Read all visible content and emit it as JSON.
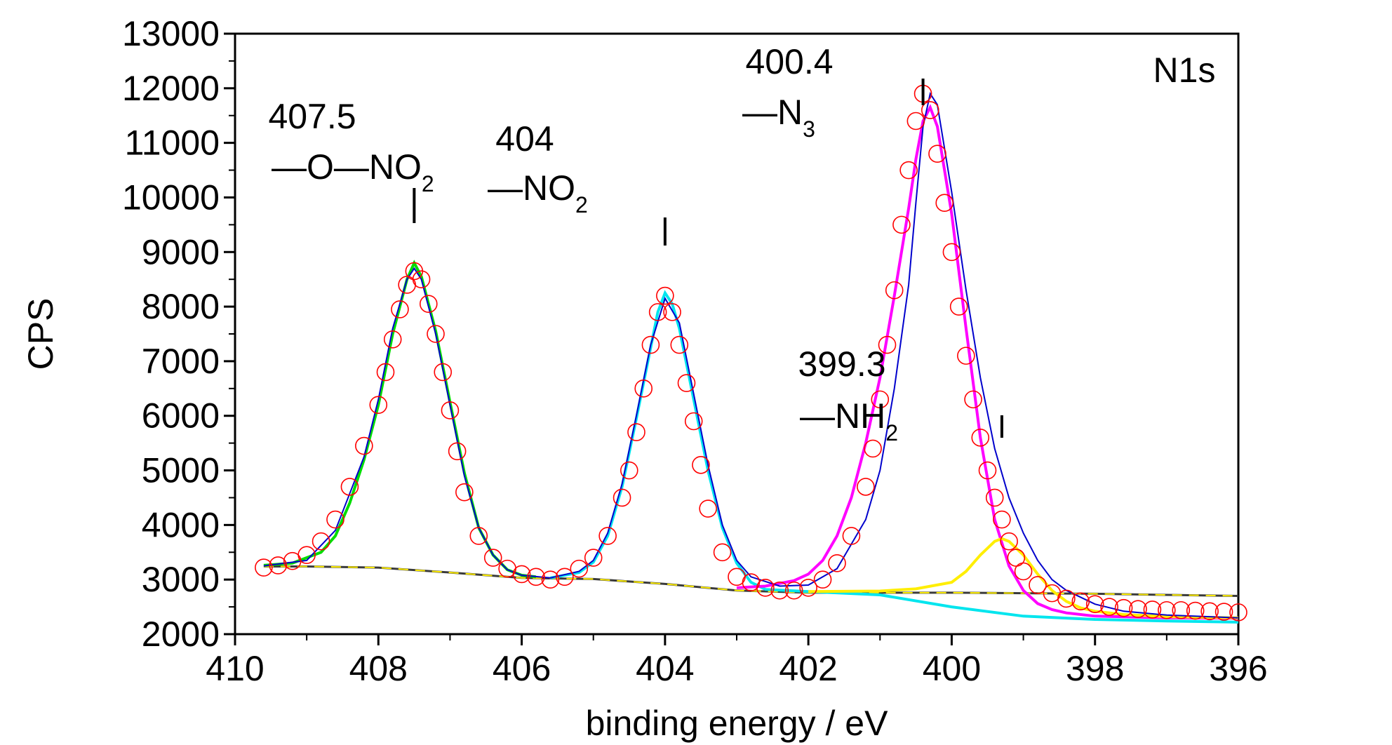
{
  "chart_data": {
    "type": "line",
    "panel_label": "N1s",
    "xlabel": "binding energy / eV",
    "ylabel": "CPS",
    "xlim": [
      410,
      396
    ],
    "ylim": [
      2000,
      13000
    ],
    "x_ticks": [
      "410",
      "408",
      "406",
      "404",
      "402",
      "400",
      "398",
      "396"
    ],
    "y_ticks": [
      "2000",
      "3000",
      "4000",
      "5000",
      "6000",
      "7000",
      "8000",
      "9000",
      "10000",
      "11000",
      "12000",
      "13000"
    ],
    "grid": false,
    "legend": "none",
    "colors": {
      "data": "#ff0000",
      "envelope": "#0000cc",
      "peak_407_5": "#00dd00",
      "peak_404": "#00e5ee",
      "peak_400_4": "#ff00ff",
      "peak_399_3": "#ffee00"
    },
    "series": [
      {
        "kind": "measured-points",
        "x": [
          409.6,
          409.4,
          409.2,
          409.0,
          408.8,
          408.6,
          408.4,
          408.2,
          408.0,
          407.9,
          407.8,
          407.7,
          407.6,
          407.5,
          407.4,
          407.3,
          407.2,
          407.1,
          407.0,
          406.9,
          406.8,
          406.6,
          406.4,
          406.2,
          406.0,
          405.8,
          405.6,
          405.4,
          405.2,
          405.0,
          404.8,
          404.6,
          404.5,
          404.4,
          404.3,
          404.2,
          404.1,
          404.0,
          403.9,
          403.8,
          403.7,
          403.6,
          403.5,
          403.4,
          403.2,
          403.0,
          402.8,
          402.6,
          402.4,
          402.2,
          402.0,
          401.8,
          401.6,
          401.4,
          401.2,
          401.1,
          401.0,
          400.9,
          400.8,
          400.7,
          400.6,
          400.5,
          400.4,
          400.3,
          400.2,
          400.1,
          400.0,
          399.9,
          399.8,
          399.7,
          399.6,
          399.5,
          399.4,
          399.3,
          399.2,
          399.1,
          399.0,
          398.8,
          398.6,
          398.4,
          398.2,
          398.0,
          397.8,
          397.6,
          397.4,
          397.2,
          397.0,
          396.8,
          396.6,
          396.4,
          396.2,
          396.0
        ],
        "y": [
          3220,
          3260,
          3340,
          3450,
          3700,
          4100,
          4700,
          5450,
          6200,
          6800,
          7400,
          7950,
          8400,
          8650,
          8500,
          8050,
          7500,
          6800,
          6100,
          5350,
          4600,
          3800,
          3400,
          3200,
          3100,
          3050,
          3000,
          3050,
          3200,
          3400,
          3800,
          4500,
          5000,
          5700,
          6500,
          7300,
          7900,
          8200,
          7900,
          7300,
          6600,
          5900,
          5100,
          4300,
          3500,
          3050,
          2950,
          2850,
          2800,
          2800,
          2850,
          3000,
          3300,
          3800,
          4700,
          5400,
          6300,
          7300,
          8300,
          9500,
          10500,
          11400,
          11900,
          11600,
          10800,
          9900,
          9000,
          8000,
          7100,
          6300,
          5600,
          5000,
          4500,
          4100,
          3700,
          3400,
          3150,
          2900,
          2750,
          2650,
          2600,
          2550,
          2500,
          2480,
          2460,
          2450,
          2440,
          2440,
          2430,
          2420,
          2410,
          2400
        ]
      },
      {
        "kind": "envelope",
        "x": [
          409.6,
          409.0,
          408.6,
          408.2,
          408.0,
          407.8,
          407.6,
          407.5,
          407.4,
          407.2,
          407.0,
          406.8,
          406.6,
          406.4,
          406.2,
          406.0,
          405.6,
          405.2,
          405.0,
          404.8,
          404.6,
          404.4,
          404.2,
          404.0,
          403.8,
          403.6,
          403.4,
          403.2,
          403.0,
          402.8,
          402.4,
          402.0,
          401.6,
          401.2,
          401.0,
          400.8,
          400.6,
          400.5,
          400.4,
          400.3,
          400.2,
          400.0,
          399.8,
          399.6,
          399.4,
          399.2,
          399.0,
          398.8,
          398.6,
          398.4,
          398.0,
          397.6,
          397.0,
          396.0
        ],
        "y": [
          3250,
          3350,
          3900,
          5250,
          6300,
          7600,
          8500,
          8700,
          8500,
          7500,
          6200,
          4900,
          3950,
          3450,
          3180,
          3080,
          3030,
          3150,
          3350,
          3850,
          4750,
          6000,
          7300,
          8150,
          7700,
          6400,
          5100,
          4000,
          3350,
          3050,
          2880,
          2900,
          3200,
          4100,
          5000,
          6500,
          8400,
          9900,
          11300,
          11900,
          11700,
          10100,
          8300,
          6700,
          5400,
          4500,
          3850,
          3350,
          3000,
          2800,
          2550,
          2420,
          2350,
          2300
        ]
      },
      {
        "kind": "component",
        "label": "407.5",
        "x": [
          409.6,
          409.2,
          408.8,
          408.6,
          408.4,
          408.2,
          408.0,
          407.8,
          407.6,
          407.5,
          407.4,
          407.2,
          407.0,
          406.8,
          406.6,
          406.4,
          406.2,
          406.0,
          405.8
        ],
        "y": [
          3260,
          3300,
          3500,
          3800,
          4400,
          5200,
          6200,
          7500,
          8500,
          8800,
          8550,
          7550,
          6250,
          4950,
          3950,
          3450,
          3180,
          3080,
          3050
        ]
      },
      {
        "kind": "component",
        "label": "404",
        "x": [
          405.6,
          405.2,
          405.0,
          404.8,
          404.6,
          404.4,
          404.2,
          404.1,
          404.0,
          403.9,
          403.8,
          403.6,
          403.4,
          403.2,
          403.0,
          402.8,
          402.6,
          402.0,
          401.0,
          400.0,
          399.0,
          398.0,
          397.0,
          396.0
        ],
        "y": [
          3030,
          3130,
          3320,
          3800,
          4700,
          5950,
          7250,
          7900,
          8250,
          8050,
          7600,
          6300,
          5000,
          3950,
          3300,
          2950,
          2820,
          2780,
          2720,
          2500,
          2330,
          2270,
          2240,
          2220
        ]
      },
      {
        "kind": "component",
        "label": "400.4",
        "x": [
          403.0,
          402.6,
          402.2,
          402.0,
          401.8,
          401.6,
          401.4,
          401.2,
          401.0,
          400.8,
          400.6,
          400.5,
          400.4,
          400.3,
          400.2,
          400.0,
          399.8,
          399.6,
          399.4,
          399.2,
          399.0,
          398.8,
          398.6,
          398.4,
          398.0,
          397.0,
          396.0
        ],
        "y": [
          2850,
          2880,
          2980,
          3100,
          3350,
          3800,
          4500,
          5500,
          6700,
          8200,
          9800,
          10700,
          11400,
          11650,
          11300,
          9700,
          7600,
          5600,
          4100,
          3250,
          2800,
          2560,
          2450,
          2390,
          2330,
          2300,
          2290
        ]
      },
      {
        "kind": "component",
        "label": "399.3",
        "x": [
          402.0,
          401.0,
          400.5,
          400.0,
          399.8,
          399.6,
          399.4,
          399.3,
          399.2,
          399.0,
          398.8,
          398.6,
          398.4,
          398.2,
          398.0,
          397.6,
          397.0,
          396.0
        ],
        "y": [
          2780,
          2790,
          2830,
          2950,
          3150,
          3450,
          3700,
          3750,
          3700,
          3450,
          3100,
          2800,
          2600,
          2480,
          2420,
          2360,
          2320,
          2300
        ]
      },
      {
        "kind": "background",
        "x": [
          409.6,
          409.0,
          408.0,
          407.0,
          406.0,
          405.0,
          404.0,
          403.0,
          402.0,
          401.0,
          400.0,
          399.0,
          398.0,
          397.0,
          396.0
        ],
        "y": [
          3240,
          3240,
          3220,
          3130,
          3030,
          3010,
          2920,
          2800,
          2760,
          2760,
          2760,
          2750,
          2740,
          2720,
          2700
        ]
      }
    ],
    "annotations": {
      "peak_407_5": {
        "value": "407.5",
        "group": "—O—NO",
        "sub": "2",
        "x": 407.5
      },
      "peak_404": {
        "value": "404",
        "group": "—NO",
        "sub": "2",
        "x": 404.0
      },
      "peak_400_4": {
        "value": "400.4",
        "group": "—N",
        "sub": "3",
        "x": 400.4
      },
      "peak_399_3": {
        "value": "399.3",
        "group": "—NH",
        "sub": "2",
        "x": 399.3
      }
    }
  }
}
